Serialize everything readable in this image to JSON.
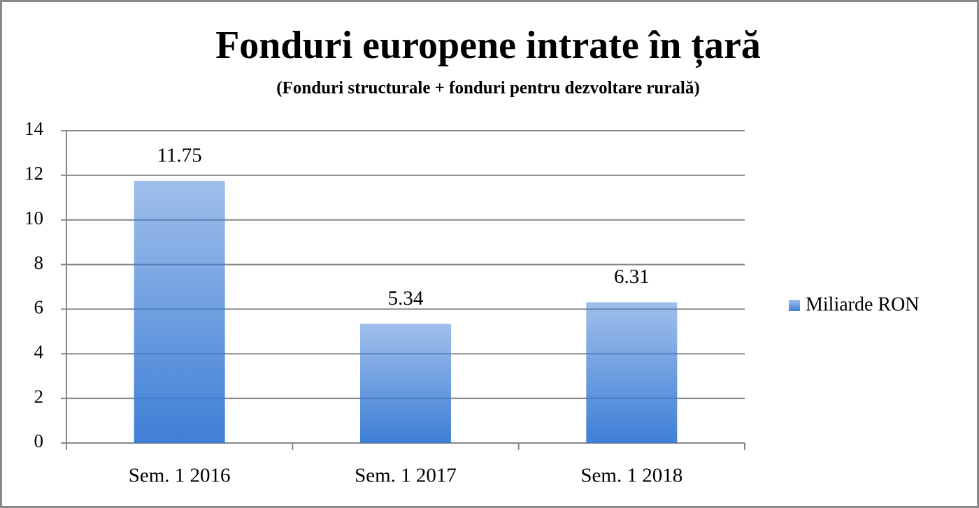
{
  "chart_data": {
    "type": "bar",
    "title": "Fonduri europene intrate în țară",
    "subtitle": "(Fonduri structurale + fonduri pentru dezvoltare rurală)",
    "categories": [
      "Sem. 1 2016",
      "Sem. 1 2017",
      "Sem. 1 2018"
    ],
    "series": [
      {
        "name": "Miliarde RON",
        "color": "#3f7fd6",
        "values": [
          11.75,
          5.34,
          6.31
        ]
      }
    ],
    "ylim": [
      0,
      14
    ],
    "yticks": [
      0,
      2,
      4,
      6,
      8,
      10,
      12,
      14
    ],
    "grid": true,
    "legend": "right"
  }
}
